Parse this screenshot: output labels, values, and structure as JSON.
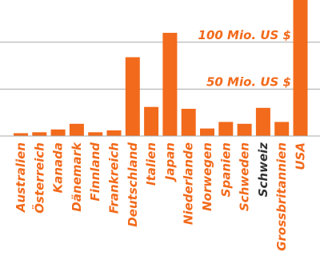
{
  "chart_data": {
    "type": "bar",
    "categories": [
      "Australien",
      "Österreich",
      "Kanada",
      "Dänemark",
      "Finnland",
      "Frankreich",
      "Deutschland",
      "Italien",
      "Japan",
      "Niederlande",
      "Norwegen",
      "Spanien",
      "Schweden",
      "Schweiz",
      "Grossbritannien",
      "USA"
    ],
    "values": [
      3,
      4,
      7,
      13,
      4,
      6,
      84,
      31,
      110,
      29,
      8,
      15,
      13,
      30,
      15,
      145
    ],
    "ylim": [
      0,
      145
    ],
    "grid_values": [
      50,
      100
    ],
    "tick_labels": [
      "50 Mio. US $",
      "100 Mio. US $"
    ],
    "highlight_category": "Schweiz",
    "colors": {
      "bar": "#f26a1b",
      "label": "#f26a1b",
      "highlight_label": "#333333",
      "grid": "#a9a9a9"
    }
  }
}
